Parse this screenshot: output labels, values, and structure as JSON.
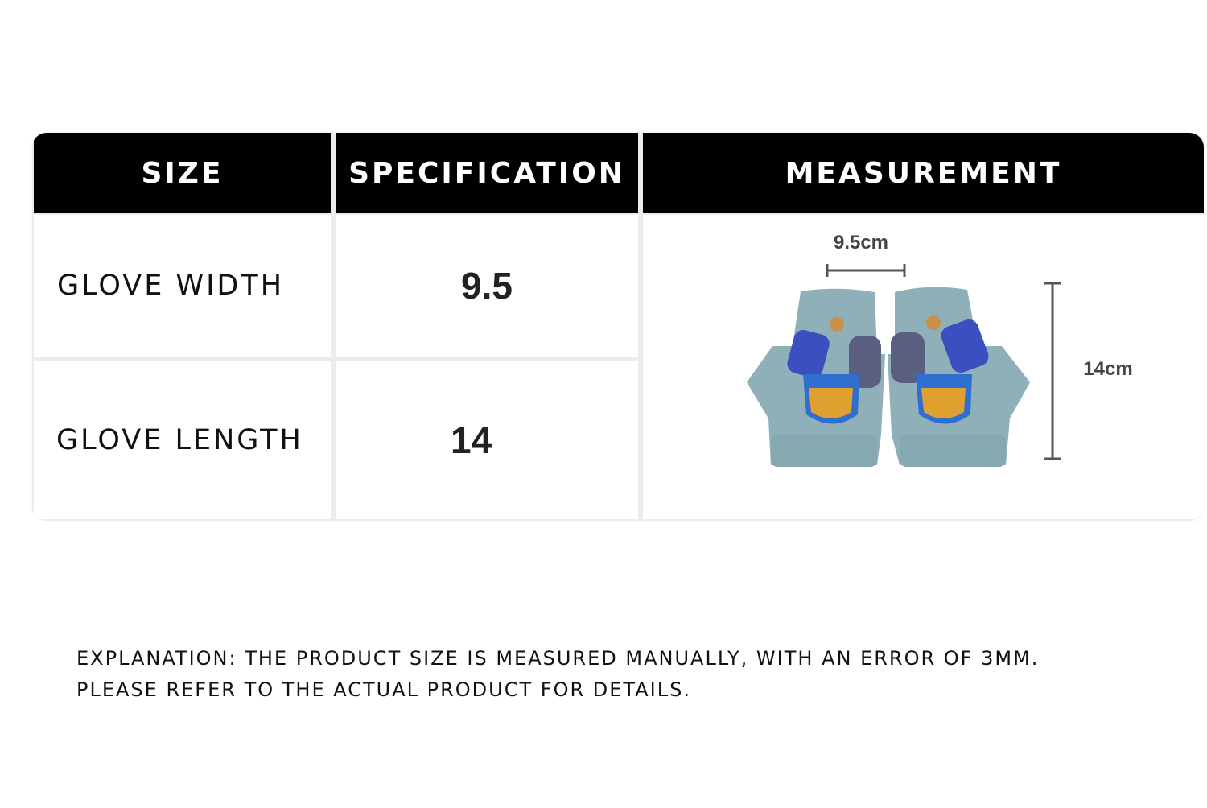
{
  "table": {
    "headers": [
      "SIZE",
      "SPECIFICATION",
      "MEASUREMENT"
    ],
    "rows": [
      {
        "size": "GLOVE WIDTH",
        "spec": "9.5"
      },
      {
        "size": "GLOVE LENGTH",
        "spec": "14"
      }
    ],
    "measurement": {
      "width_label": "9.5cm",
      "length_label": "14cm",
      "image": "fingerless-flip-mitten-gloves-pair"
    }
  },
  "explanation": {
    "line1": "EXPLANATION: THE PRODUCT SIZE IS MEASURED MANUALLY, WITH AN ERROR OF 3MM.",
    "line2": "PLEASE REFER TO THE ACTUAL PRODUCT FOR DETAILS."
  },
  "colors": {
    "header_bg": "#000000",
    "glove": "#8fb0b8",
    "flap_blue": "#3a4fc0",
    "flap_grey": "#5a5f80",
    "badge_orange": "#e0a030"
  }
}
